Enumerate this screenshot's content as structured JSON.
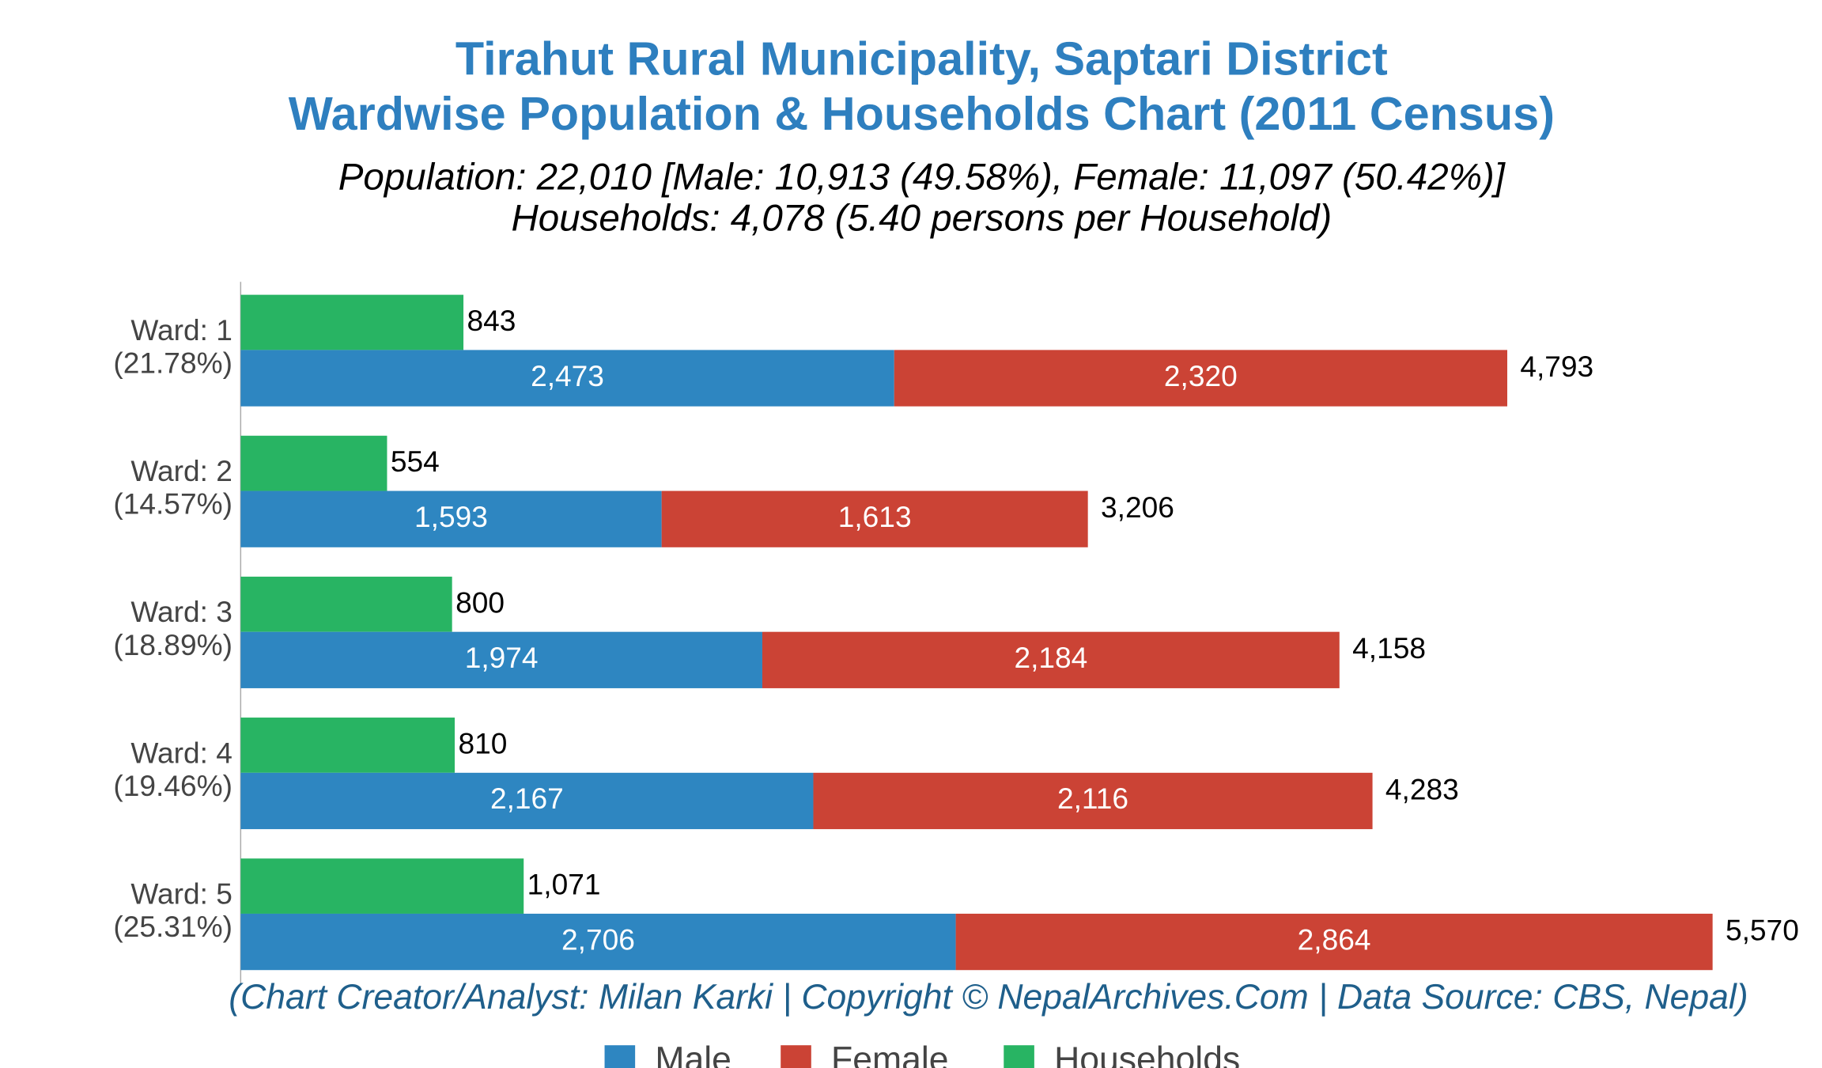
{
  "chart_data": {
    "type": "bar",
    "orientation": "horizontal",
    "title": [
      "Tirahut Rural Municipality, Saptari District",
      "Wardwise Population & Households Chart (2011 Census)"
    ],
    "subtitle": [
      "Population: 22,010 [Male: 10,913 (49.58%), Female: 11,097 (50.42%)]",
      "Households: 4,078 (5.40 persons per Household)"
    ],
    "footer": "(Chart Creator/Analyst: Milan Karki | Copyright © NepalArchives.Com | Data Source: CBS, Nepal)",
    "categories": [
      "Ward: 1",
      "Ward: 2",
      "Ward: 3",
      "Ward: 4",
      "Ward: 5"
    ],
    "category_shares": [
      "(21.78%)",
      "(14.57%)",
      "(18.89%)",
      "(19.46%)",
      "(25.31%)"
    ],
    "series": [
      {
        "name": "Male",
        "color": "#2e86c1",
        "values": [
          2473,
          1593,
          1974,
          2167,
          2706
        ],
        "value_labels": [
          "2,473",
          "1,593",
          "1,974",
          "2,167",
          "2,706"
        ]
      },
      {
        "name": "Female",
        "color": "#cb4335",
        "values": [
          2320,
          1613,
          2184,
          2116,
          2864
        ],
        "value_labels": [
          "2,320",
          "1,613",
          "2,184",
          "2,116",
          "2,864"
        ]
      },
      {
        "name": "Households",
        "color": "#28b463",
        "values": [
          843,
          554,
          800,
          810,
          1071
        ],
        "value_labels": [
          "843",
          "554",
          "800",
          "810",
          "1,071"
        ]
      }
    ],
    "totals": [
      4793,
      3206,
      4158,
      4283,
      5570
    ],
    "total_labels": [
      "4,793",
      "3,206",
      "4,158",
      "4,283",
      "5,570"
    ],
    "xlim": [
      0,
      6000
    ],
    "legend": "bottom"
  }
}
